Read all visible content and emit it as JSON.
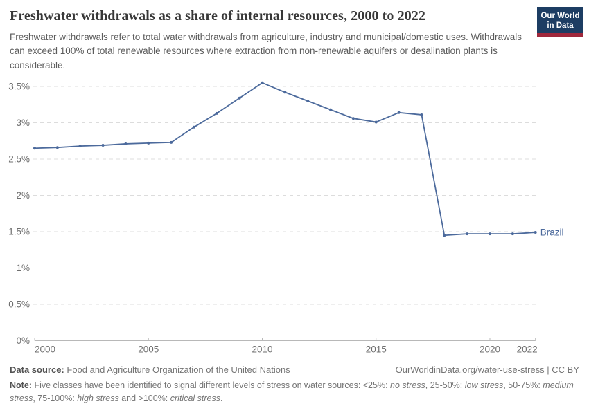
{
  "header": {
    "title": "Freshwater withdrawals as a share of internal resources, 2000 to 2022",
    "subtitle": "Freshwater withdrawals refer to total water withdrawals from agriculture, industry and municipal/domestic uses. Withdrawals can exceed 100% of total renewable resources where extraction from non-renewable aquifers or desalination plants is considerable.",
    "logo": {
      "line1": "Our World",
      "line2": "in Data"
    }
  },
  "chart_data": {
    "type": "line",
    "title": "Freshwater withdrawals as a share of internal resources, 2000 to 2022",
    "x": [
      2000,
      2001,
      2002,
      2003,
      2004,
      2005,
      2006,
      2007,
      2008,
      2009,
      2010,
      2011,
      2012,
      2013,
      2014,
      2015,
      2016,
      2017,
      2018,
      2019,
      2020,
      2021,
      2022
    ],
    "series": [
      {
        "name": "Brazil",
        "color": "#4c6a9c",
        "values": [
          2.65,
          2.66,
          2.68,
          2.69,
          2.71,
          2.72,
          2.73,
          2.94,
          3.13,
          3.34,
          3.55,
          3.42,
          3.3,
          3.18,
          3.06,
          3.01,
          3.14,
          3.11,
          1.45,
          1.47,
          1.47,
          1.47,
          1.49
        ]
      }
    ],
    "unit": "%",
    "ylim": [
      0,
      3.5
    ],
    "y_ticks": [
      {
        "value": 0,
        "label": "0%"
      },
      {
        "value": 0.5,
        "label": "0.5%"
      },
      {
        "value": 1,
        "label": "1%"
      },
      {
        "value": 1.5,
        "label": "1.5%"
      },
      {
        "value": 2,
        "label": "2%"
      },
      {
        "value": 2.5,
        "label": "2.5%"
      },
      {
        "value": 3,
        "label": "3%"
      },
      {
        "value": 3.5,
        "label": "3.5%"
      }
    ],
    "x_ticks": [
      2000,
      2005,
      2010,
      2015,
      2020,
      2022
    ],
    "grid": "horizontal-dashed",
    "legend_position": "end-of-line-label",
    "end_label": "Brazil"
  },
  "footer": {
    "datasource_label": "Data source:",
    "datasource_value": "Food and Agriculture Organization of the United Nations",
    "link_text": "OurWorldinData.org/water-use-stress | CC BY",
    "note_label": "Note:",
    "note_segments": [
      {
        "text": "Five classes have been identified to signal different levels of stress on water sources: <25%: ",
        "italic": false
      },
      {
        "text": "no stress",
        "italic": true
      },
      {
        "text": ", 25-50%: ",
        "italic": false
      },
      {
        "text": "low stress",
        "italic": true
      },
      {
        "text": ", 50-75%: ",
        "italic": false
      },
      {
        "text": "medium stress",
        "italic": true
      },
      {
        "text": ", 75-100%: ",
        "italic": false
      },
      {
        "text": "high stress",
        "italic": true
      },
      {
        "text": " and >100%: ",
        "italic": false
      },
      {
        "text": "critical stress",
        "italic": true
      },
      {
        "text": ".",
        "italic": false
      }
    ]
  },
  "colors": {
    "accent_line": "#4c6a9c",
    "logo_bg": "#1d3d63",
    "logo_bar": "#a0283c",
    "grid": "#dcdcdc",
    "axis": "#b8b8b8",
    "tick_text": "#6f6f6f",
    "title_text": "#383838",
    "subtitle_text": "#5c5c5c",
    "footer_text": "#757575"
  }
}
